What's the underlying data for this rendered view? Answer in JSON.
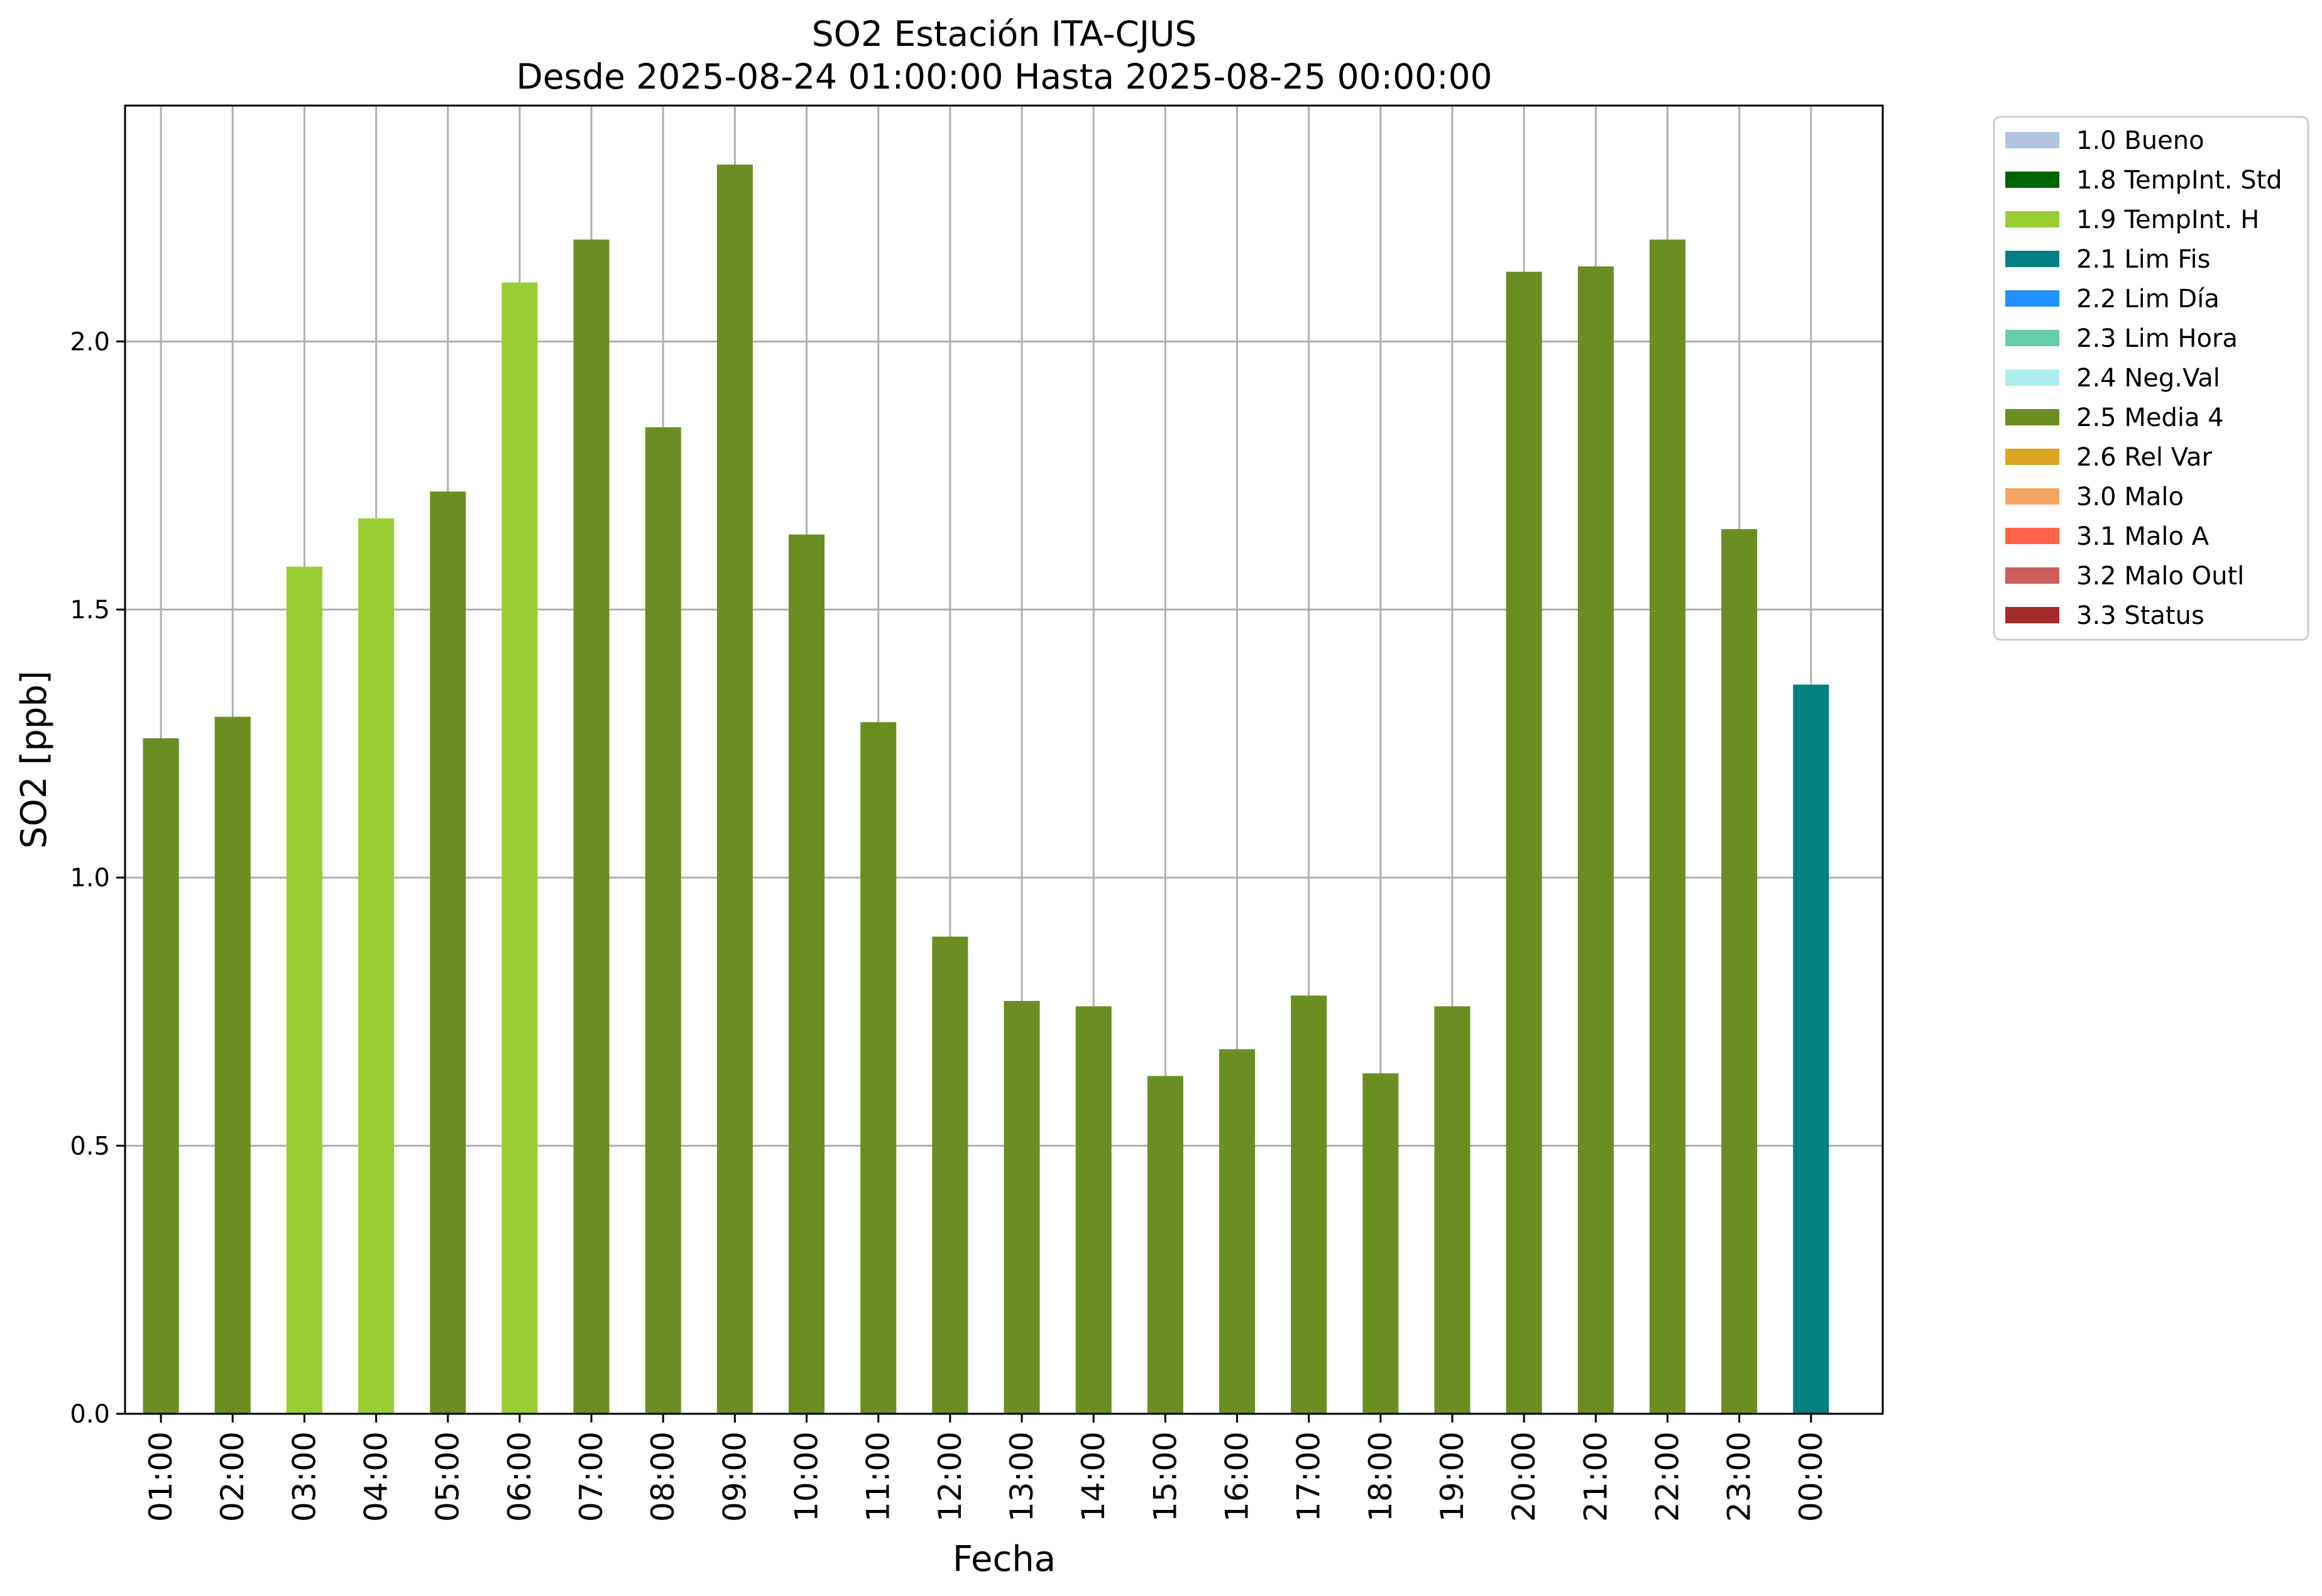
{
  "chart_data": {
    "type": "bar",
    "title": "SO2 Estación ITA-CJUS",
    "subtitle": "Desde 2025-08-24 01:00:00 Hasta 2025-08-25 00:00:00",
    "xlabel": "Fecha",
    "ylabel": "SO2 [ppb]",
    "ylim": [
      0,
      2.44
    ],
    "yticks": [
      "0.0",
      "0.5",
      "1.0",
      "1.5",
      "2.0"
    ],
    "ytick_values": [
      0,
      0.5,
      1.0,
      1.5,
      2.0
    ],
    "grid": true,
    "legend_position": "outside-top-right",
    "categories": [
      "01:00",
      "02:00",
      "03:00",
      "04:00",
      "05:00",
      "06:00",
      "07:00",
      "08:00",
      "09:00",
      "10:00",
      "11:00",
      "12:00",
      "13:00",
      "14:00",
      "15:00",
      "16:00",
      "17:00",
      "18:00",
      "19:00",
      "20:00",
      "21:00",
      "22:00",
      "23:00",
      "00:00"
    ],
    "values": [
      1.26,
      1.3,
      1.58,
      1.67,
      1.72,
      2.11,
      2.19,
      1.84,
      2.33,
      1.64,
      1.29,
      0.89,
      0.77,
      0.76,
      0.63,
      0.68,
      0.78,
      0.635,
      0.76,
      2.13,
      2.14,
      2.19,
      1.65,
      1.36
    ],
    "flags": [
      "2.5",
      "2.5",
      "1.9",
      "1.9",
      "2.5",
      "1.9",
      "2.5",
      "2.5",
      "2.5",
      "2.5",
      "2.5",
      "2.5",
      "2.5",
      "2.5",
      "2.5",
      "2.5",
      "2.5",
      "2.5",
      "2.5",
      "2.5",
      "2.5",
      "2.5",
      "2.5",
      "2.1"
    ],
    "legend": [
      {
        "code": "1.0",
        "label": "1.0 Bueno",
        "color": "#b0c4de"
      },
      {
        "code": "1.8",
        "label": "1.8 TempInt. Std",
        "color": "#006400"
      },
      {
        "code": "1.9",
        "label": "1.9 TempInt. H",
        "color": "#9acd32"
      },
      {
        "code": "2.1",
        "label": "2.1 Lim Fis",
        "color": "#008080"
      },
      {
        "code": "2.2",
        "label": "2.2 Lim Día",
        "color": "#1e90ff"
      },
      {
        "code": "2.3",
        "label": "2.3 Lim Hora",
        "color": "#66cdaa"
      },
      {
        "code": "2.4",
        "label": "2.4 Neg.Val",
        "color": "#afeeee"
      },
      {
        "code": "2.5",
        "label": "2.5 Media 4",
        "color": "#6b8e23"
      },
      {
        "code": "2.6",
        "label": "2.6 Rel Var",
        "color": "#daa520"
      },
      {
        "code": "3.0",
        "label": "3.0 Malo",
        "color": "#f4a460"
      },
      {
        "code": "3.1",
        "label": "3.1 Malo A",
        "color": "#ff6347"
      },
      {
        "code": "3.2",
        "label": "3.2 Malo Outl",
        "color": "#cd5c5c"
      },
      {
        "code": "3.3",
        "label": "3.3 Status",
        "color": "#a52a2a"
      }
    ]
  }
}
